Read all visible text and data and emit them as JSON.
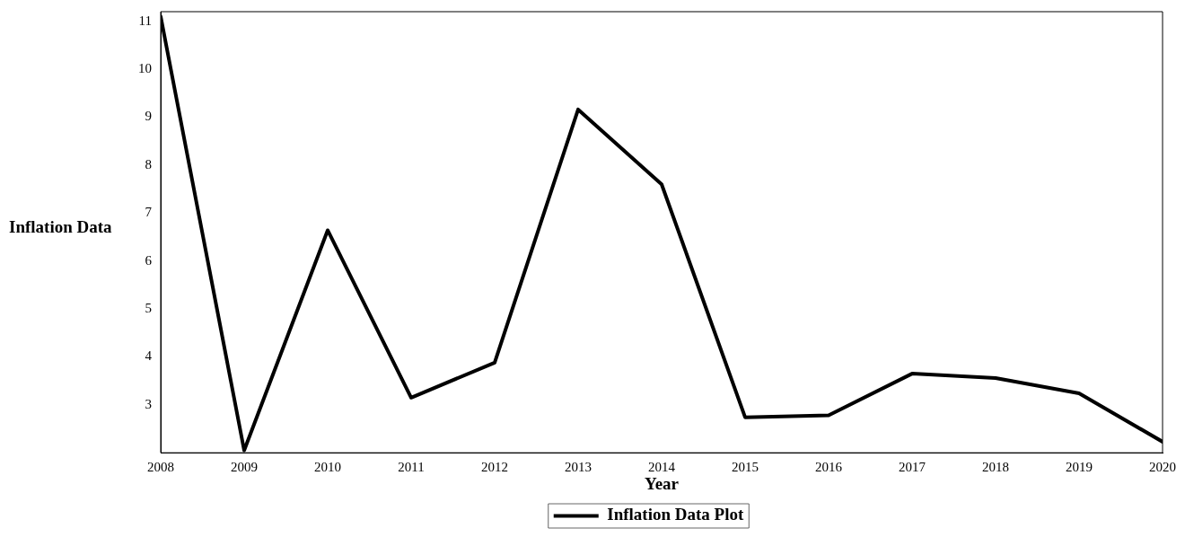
{
  "chart_data": {
    "type": "line",
    "xlabel": "Year",
    "ylabel": "Inflation Data",
    "x": [
      2008,
      2009,
      2010,
      2011,
      2012,
      2013,
      2014,
      2015,
      2016,
      2017,
      2018,
      2019,
      2020
    ],
    "series": [
      {
        "name": "Inflation Data Plot",
        "color": "#000000",
        "values": [
          11.1,
          2.05,
          6.64,
          3.15,
          3.88,
          9.16,
          7.6,
          2.74,
          2.78,
          3.65,
          3.56,
          3.24,
          2.23
        ]
      }
    ],
    "xlim": [
      2008,
      2020
    ],
    "xticks": [
      2008,
      2009,
      2010,
      2011,
      2012,
      2013,
      2014,
      2015,
      2016,
      2017,
      2018,
      2019,
      2020
    ],
    "ylim": [
      2,
      11.2
    ],
    "yticks": [
      3,
      4,
      5,
      6,
      7,
      8,
      9,
      10,
      11
    ],
    "grid": false,
    "legend": "bottom",
    "marker": "none",
    "line_style": "solid"
  }
}
